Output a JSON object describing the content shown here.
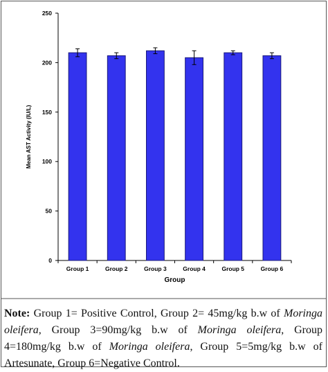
{
  "chart_data": {
    "type": "bar",
    "title": "",
    "xlabel": "Group",
    "ylabel": "Mean AST Activity (IU/L)",
    "categories": [
      "Group 1",
      "Group 2",
      "Group 3",
      "Group 4",
      "Group 5",
      "Group 6"
    ],
    "values": [
      210,
      207,
      212,
      205,
      210,
      207
    ],
    "error": [
      4,
      3,
      3,
      7,
      2,
      3
    ],
    "ylim": [
      0,
      250
    ],
    "yticks": [
      0,
      50,
      100,
      150,
      200,
      250
    ],
    "grid": false,
    "legend": "none",
    "bar_color": "#3333ee",
    "bar_edge_color": "#1a1a7a"
  },
  "note": {
    "label": "Note:",
    "segments": [
      {
        "text": " Group 1= Positive Control, Group 2= 45mg/kg b.w of ",
        "italic": false
      },
      {
        "text": "Moringa oleifera",
        "italic": true
      },
      {
        "text": ", Group 3=90mg/kg b.w of ",
        "italic": false
      },
      {
        "text": "Moringa oleifera",
        "italic": true
      },
      {
        "text": ", Group 4=180mg/kg b.w of ",
        "italic": false
      },
      {
        "text": "Moringa oleifera",
        "italic": true
      },
      {
        "text": ", Group 5=5mg/kg b.w of Artesunate, Group 6=Negative Control.",
        "italic": false
      }
    ]
  }
}
